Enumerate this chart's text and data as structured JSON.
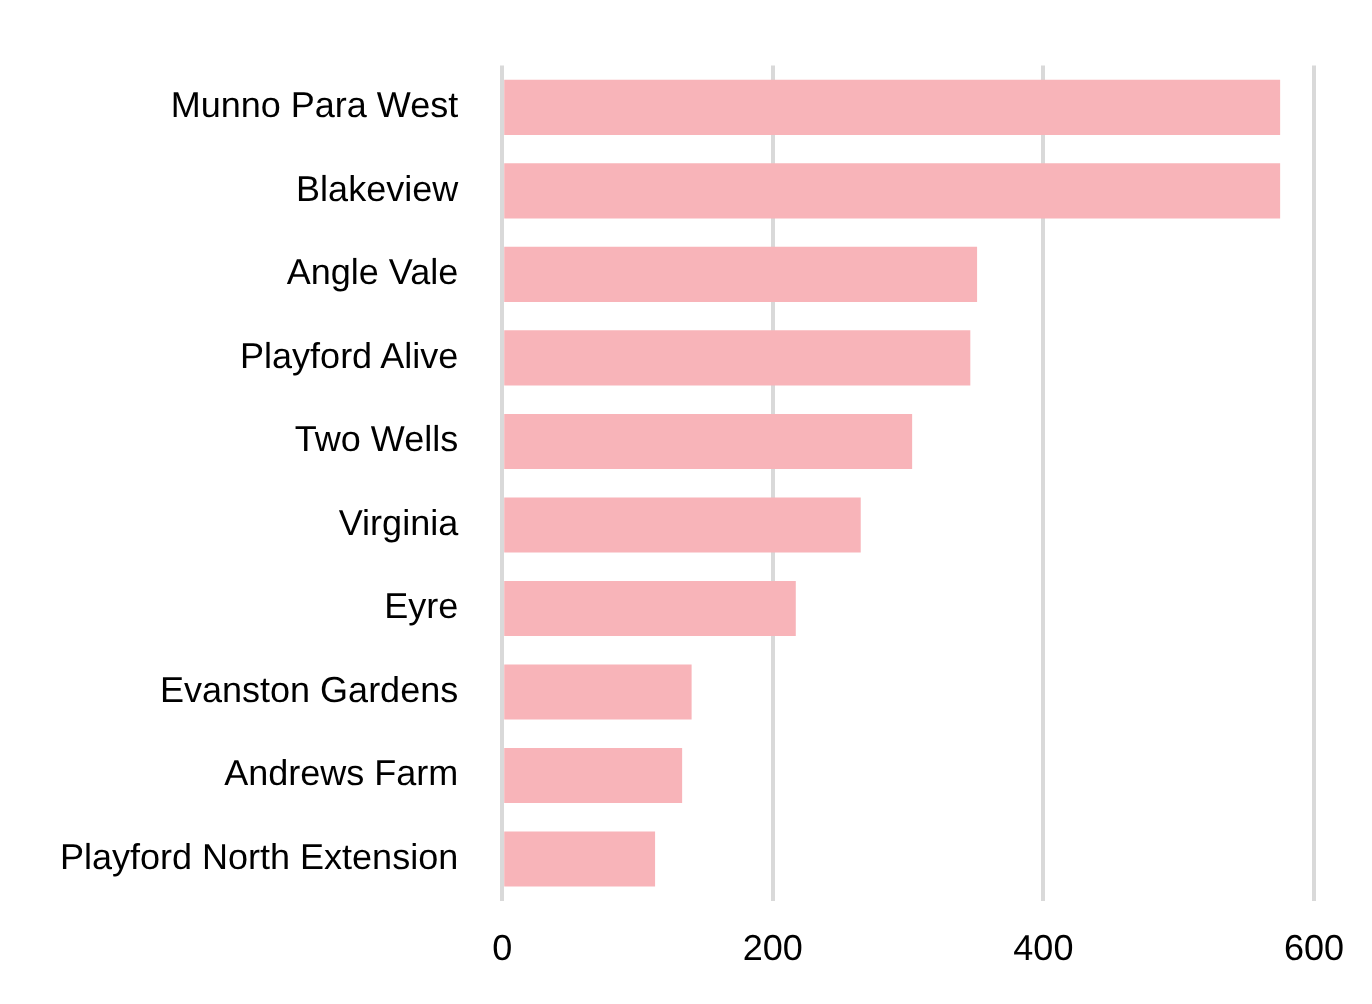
{
  "chart_data": {
    "type": "bar",
    "orientation": "horizontal",
    "categories": [
      "Munno Para West",
      "Blakeview",
      "Angle Vale",
      "Playford Alive",
      "Two Wells",
      "Virginia",
      "Eyre",
      "Evanston Gardens",
      "Andrews Farm",
      "Playford North Extension"
    ],
    "values": [
      575,
      575,
      351,
      346,
      303,
      265,
      217,
      140,
      133,
      113
    ],
    "color": "#f8b4b9",
    "xlim": [
      0,
      600
    ],
    "xticks": [
      0,
      200,
      400,
      600
    ],
    "grid": "x",
    "legend": false
  }
}
